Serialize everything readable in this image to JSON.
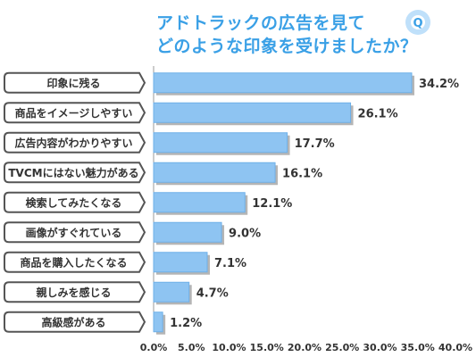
{
  "chart_data": {
    "type": "bar",
    "orientation": "horizontal",
    "title": [
      "アドトラックの広告を見て",
      "どのような印象を受けましたか？"
    ],
    "title_icon": "Q",
    "categories": [
      "印象に残る",
      "商品をイメージしやすい",
      "広告内容がわかりやすい",
      "TVCMにはない魅力がある",
      "検索してみたくなる",
      "画像がすぐれている",
      "商品を購入したくなる",
      "親しみを感じる",
      "高級感がある"
    ],
    "values": [
      34.2,
      26.1,
      17.7,
      16.1,
      12.1,
      9.0,
      7.1,
      4.7,
      1.2
    ],
    "value_labels": [
      "34.2%",
      "26.1%",
      "17.7%",
      "16.1%",
      "12.1%",
      "9.0%",
      "7.1%",
      "4.7%",
      "1.2%"
    ],
    "x_ticks": [
      "0.0%",
      "5.0%",
      "10.0%",
      "15.0%",
      "20.0%",
      "25.0%",
      "30.0%",
      "35.0%",
      "40.0%"
    ],
    "xlim": [
      0,
      40
    ],
    "xlabel": "",
    "ylabel": "",
    "grid": false,
    "colors": {
      "bar": "#8ec4f2",
      "bar_edge": "#6fb0e8",
      "bar_shadow": "#b5b5b5",
      "title": "#3aa0e6",
      "label_border": "#555555",
      "text": "#333333",
      "axis": "#999999",
      "badge": "#bfe0fa"
    }
  }
}
